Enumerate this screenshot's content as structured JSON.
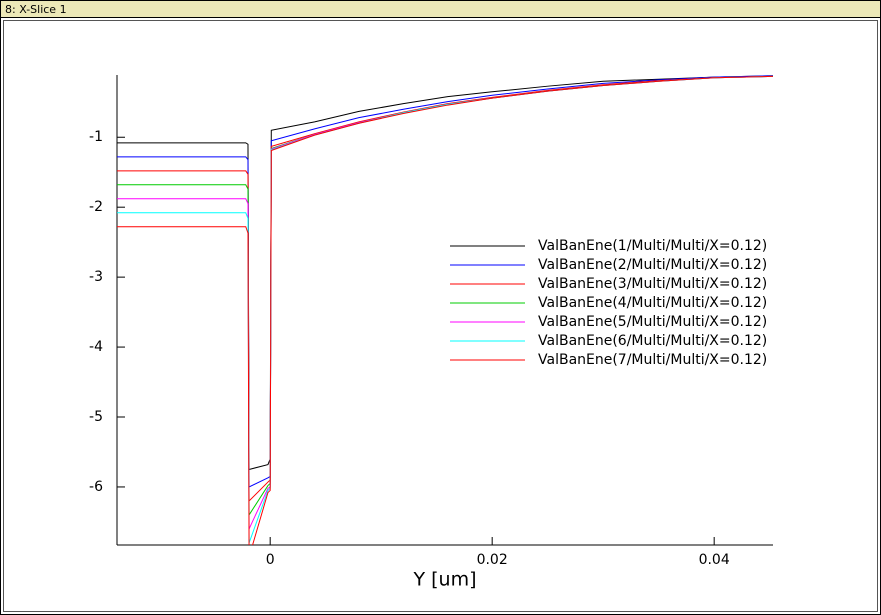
{
  "window_title": "8: X-Slice 1",
  "chart_data": {
    "type": "line",
    "xlabel": "Y [um]",
    "x": [
      -0.0138,
      -0.0022,
      -0.002,
      -0.0019,
      -0.0002,
      0,
      0.0001,
      0.004,
      0.008,
      0.012,
      0.016,
      0.02,
      0.025,
      0.03,
      0.035,
      0.04,
      0.0453
    ],
    "series": [
      {
        "name": "ValBanEne(1/Multi/Multi/X=0.12)",
        "color": "#000000",
        "values": [
          -1.08,
          -1.08,
          -1.1,
          -5.75,
          -5.68,
          -5.6,
          -0.9,
          -0.78,
          -0.63,
          -0.52,
          -0.42,
          -0.35,
          -0.27,
          -0.2,
          -0.17,
          -0.14,
          -0.12
        ]
      },
      {
        "name": "ValBanEne(2/Multi/Multi/X=0.12)",
        "color": "#0000ff",
        "values": [
          -1.28,
          -1.28,
          -1.32,
          -6.0,
          -5.87,
          -5.85,
          -1.05,
          -0.88,
          -0.72,
          -0.6,
          -0.49,
          -0.4,
          -0.31,
          -0.23,
          -0.18,
          -0.14,
          -0.12
        ]
      },
      {
        "name": "ValBanEne(3/Multi/Multi/X=0.12)",
        "color": "#ff0000",
        "values": [
          -1.48,
          -1.48,
          -1.53,
          -6.2,
          -5.93,
          -5.9,
          -1.13,
          -0.95,
          -0.78,
          -0.64,
          -0.52,
          -0.43,
          -0.33,
          -0.25,
          -0.19,
          -0.15,
          -0.13
        ]
      },
      {
        "name": "ValBanEne(4/Multi/Multi/X=0.12)",
        "color": "#00cc00",
        "values": [
          -1.68,
          -1.68,
          -1.74,
          -6.4,
          -5.98,
          -5.95,
          -1.16,
          -0.96,
          -0.79,
          -0.65,
          -0.53,
          -0.44,
          -0.34,
          -0.26,
          -0.2,
          -0.15,
          -0.13
        ]
      },
      {
        "name": "ValBanEne(5/Multi/Multi/X=0.12)",
        "color": "#ff00ff",
        "values": [
          -1.88,
          -1.88,
          -1.95,
          -6.6,
          -6.02,
          -6.0,
          -1.17,
          -0.96,
          -0.79,
          -0.65,
          -0.53,
          -0.44,
          -0.34,
          -0.26,
          -0.2,
          -0.15,
          -0.13
        ]
      },
      {
        "name": "ValBanEne(6/Multi/Multi/X=0.12)",
        "color": "#00ffff",
        "values": [
          -2.08,
          -2.08,
          -2.16,
          -6.8,
          -6.05,
          -6.02,
          -1.18,
          -0.97,
          -0.8,
          -0.65,
          -0.53,
          -0.44,
          -0.34,
          -0.26,
          -0.2,
          -0.15,
          -0.13
        ]
      },
      {
        "name": "ValBanEne(7/Multi/Multi/X=0.12)",
        "color": "#ff0000",
        "values": [
          -2.28,
          -2.28,
          -2.37,
          -7.0,
          -6.08,
          -6.05,
          -1.19,
          -0.97,
          -0.8,
          -0.66,
          -0.54,
          -0.44,
          -0.34,
          -0.26,
          -0.2,
          -0.15,
          -0.13
        ]
      }
    ],
    "xlim": [
      -0.0138,
      0.0453
    ],
    "ylim": [
      -6.83,
      -0.11
    ],
    "xticks": [
      0,
      0.02,
      0.04
    ],
    "yticks": [
      -1,
      -2,
      -3,
      -4,
      -5,
      -6
    ],
    "legend": "center-right"
  }
}
